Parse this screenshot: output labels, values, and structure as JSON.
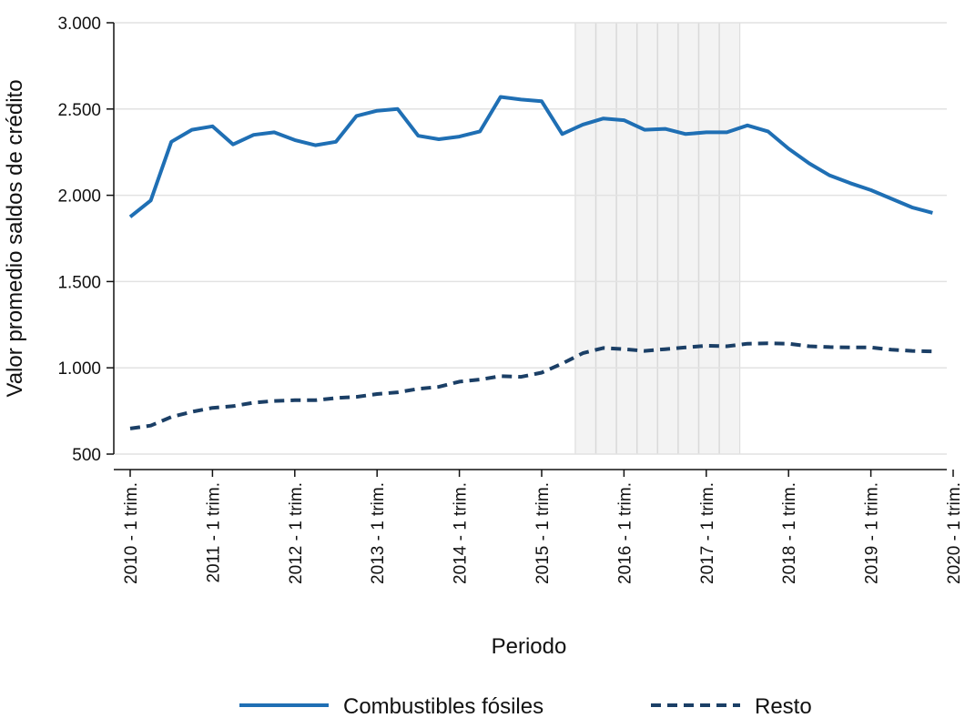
{
  "chart_data": {
    "type": "line",
    "xlabel": "Periodo",
    "ylabel": "Valor promedio saldos de crédito",
    "ylim": [
      500,
      3000
    ],
    "yticks": [
      500,
      1000,
      1500,
      2000,
      2500,
      3000
    ],
    "ytick_labels": [
      "500",
      "1.000",
      "1.500",
      "2.000",
      "2.500",
      "3.000"
    ],
    "xtick_labels": [
      "2010 - 1 trim.",
      "2011 - 1 trim.",
      "2012 - 1 trim.",
      "2013 - 1 trim.",
      "2014 - 1 trim.",
      "2015 - 1 trim.",
      "2016 - 1 trim.",
      "2017 - 1 trim.",
      "2018 - 1 trim.",
      "2019 - 1 trim.",
      "2020 - 1 trim."
    ],
    "grid": "horizontal",
    "legend_position": "bottom",
    "highlight_band": {
      "from": "2015 - 3 trim.",
      "to": "2017 - 2 trim."
    },
    "x": [
      "2010 - 1 trim.",
      "2010 - 2 trim.",
      "2010 - 3 trim.",
      "2010 - 4 trim.",
      "2011 - 1 trim.",
      "2011 - 2 trim.",
      "2011 - 3 trim.",
      "2011 - 4 trim.",
      "2012 - 1 trim.",
      "2012 - 2 trim.",
      "2012 - 3 trim.",
      "2012 - 4 trim.",
      "2013 - 1 trim.",
      "2013 - 2 trim.",
      "2013 - 3 trim.",
      "2013 - 4 trim.",
      "2014 - 1 trim.",
      "2014 - 2 trim.",
      "2014 - 3 trim.",
      "2014 - 4 trim.",
      "2015 - 1 trim.",
      "2015 - 2 trim.",
      "2015 - 3 trim.",
      "2015 - 4 trim.",
      "2016 - 1 trim.",
      "2016 - 2 trim.",
      "2016 - 3 trim.",
      "2016 - 4 trim.",
      "2017 - 1 trim.",
      "2017 - 2 trim.",
      "2017 - 3 trim.",
      "2017 - 4 trim.",
      "2018 - 1 trim.",
      "2018 - 2 trim.",
      "2018 - 3 trim.",
      "2018 - 4 trim.",
      "2019 - 1 trim.",
      "2019 - 2 trim.",
      "2019 - 3 trim.",
      "2019 - 4 trim."
    ],
    "series": [
      {
        "name": "Combustibles fósiles",
        "color": "#1f6fb4",
        "dash": "solid",
        "values": [
          1875,
          1970,
          2310,
          2380,
          2400,
          2295,
          2350,
          2365,
          2320,
          2290,
          2310,
          2460,
          2490,
          2500,
          2345,
          2325,
          2340,
          2370,
          2570,
          2555,
          2545,
          2355,
          2410,
          2445,
          2435,
          2380,
          2385,
          2355,
          2365,
          2365,
          2405,
          2370,
          2270,
          2185,
          2115,
          2070,
          2030,
          1980,
          1930,
          1898
        ]
      },
      {
        "name": "Resto",
        "color": "#1b3f66",
        "dash": "dashed",
        "values": [
          648,
          665,
          715,
          745,
          768,
          778,
          798,
          808,
          812,
          812,
          825,
          832,
          848,
          858,
          878,
          890,
          920,
          932,
          952,
          948,
          972,
          1025,
          1085,
          1115,
          1108,
          1098,
          1108,
          1118,
          1128,
          1125,
          1140,
          1142,
          1140,
          1125,
          1120,
          1118,
          1118,
          1105,
          1098,
          1095
        ]
      }
    ]
  }
}
